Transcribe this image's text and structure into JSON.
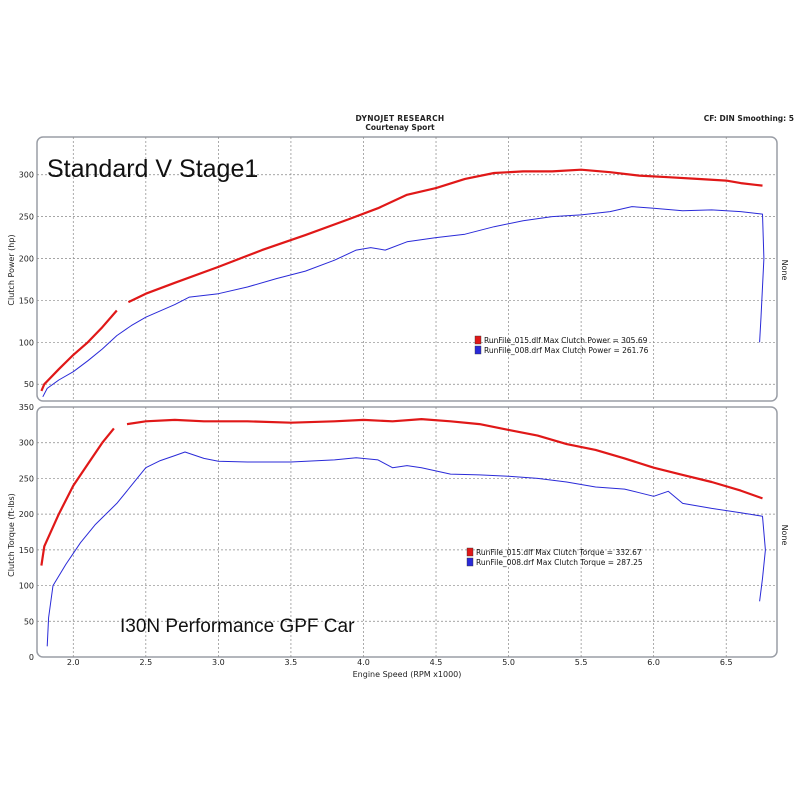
{
  "header": {
    "company": "DYNOJET RESEARCH",
    "shop": "Courtenay Sport",
    "settings": "CF: DIN  Smoothing: 5"
  },
  "colors": {
    "run015": "#e01818",
    "run008": "#2a2ad8",
    "panel": "#e6e8ec",
    "grid": "#888888"
  },
  "chart_data": [
    {
      "type": "line",
      "title": "Standard  V Stage1",
      "xlabel": "",
      "ylabel": "Clutch Power (hp)",
      "right_label": "None",
      "xlim": [
        1.75,
        6.85
      ],
      "ylim": [
        30,
        345
      ],
      "yticks": [
        50,
        100,
        150,
        200,
        250,
        300
      ],
      "grid": true,
      "legend": [
        {
          "swatch": "run015",
          "text": "RunFile_015.dlf Max Clutch Power = 305.69"
        },
        {
          "swatch": "run008",
          "text": "RunFile_008.drf Max Clutch Power = 261.76"
        }
      ],
      "series": [
        {
          "name": "RunFile_015.dlf",
          "color": "run015",
          "segments": [
            [
              [
                1.78,
                42
              ],
              [
                1.8,
                50
              ],
              [
                1.9,
                68
              ],
              [
                2.0,
                85
              ],
              [
                2.1,
                100
              ],
              [
                2.2,
                118
              ],
              [
                2.3,
                138
              ]
            ],
            [
              [
                2.38,
                148
              ],
              [
                2.5,
                158
              ],
              [
                2.7,
                171
              ],
              [
                3.0,
                190
              ],
              [
                3.3,
                210
              ],
              [
                3.6,
                228
              ],
              [
                3.9,
                247
              ],
              [
                4.1,
                260
              ],
              [
                4.3,
                276
              ],
              [
                4.5,
                284
              ],
              [
                4.7,
                295
              ],
              [
                4.9,
                302
              ],
              [
                5.1,
                304
              ],
              [
                5.3,
                304
              ],
              [
                5.5,
                306
              ],
              [
                5.7,
                303
              ],
              [
                5.9,
                299
              ],
              [
                6.1,
                297
              ],
              [
                6.3,
                295
              ],
              [
                6.5,
                293
              ],
              [
                6.6,
                290
              ],
              [
                6.7,
                288
              ],
              [
                6.75,
                287
              ]
            ]
          ]
        },
        {
          "name": "RunFile_008.drf",
          "color": "run008",
          "segments": [
            [
              [
                1.79,
                35
              ],
              [
                1.82,
                45
              ],
              [
                1.9,
                55
              ],
              [
                2.0,
                65
              ],
              [
                2.1,
                78
              ],
              [
                2.2,
                92
              ],
              [
                2.3,
                108
              ],
              [
                2.4,
                120
              ],
              [
                2.5,
                130
              ],
              [
                2.7,
                145
              ],
              [
                2.8,
                154
              ],
              [
                3.0,
                158
              ],
              [
                3.2,
                166
              ],
              [
                3.4,
                176
              ],
              [
                3.6,
                185
              ],
              [
                3.8,
                198
              ],
              [
                3.95,
                210
              ],
              [
                4.05,
                213
              ],
              [
                4.15,
                210
              ],
              [
                4.3,
                220
              ],
              [
                4.5,
                225
              ],
              [
                4.7,
                229
              ],
              [
                4.9,
                238
              ],
              [
                5.1,
                245
              ],
              [
                5.3,
                250
              ],
              [
                5.5,
                252
              ],
              [
                5.7,
                256
              ],
              [
                5.85,
                262
              ],
              [
                6.0,
                260
              ],
              [
                6.2,
                257
              ],
              [
                6.4,
                258
              ],
              [
                6.6,
                256
              ],
              [
                6.75,
                253
              ],
              [
                6.76,
                200
              ],
              [
                6.74,
                130
              ],
              [
                6.73,
                100
              ]
            ]
          ]
        }
      ]
    },
    {
      "type": "line",
      "title": "I30N Performance  GPF Car",
      "xlabel": "Engine Speed (RPM x1000)",
      "ylabel": "Clutch Torque (ft-lbs)",
      "right_label": "None",
      "xlim": [
        1.75,
        6.85
      ],
      "ylim": [
        0,
        350
      ],
      "xticks": [
        2.0,
        2.5,
        3.0,
        3.5,
        4.0,
        4.5,
        5.0,
        5.5,
        6.0,
        6.5
      ],
      "yticks": [
        0,
        50,
        100,
        150,
        200,
        250,
        300,
        350
      ],
      "grid": true,
      "legend": [
        {
          "swatch": "run015",
          "text": "RunFile_015.dlf Max Clutch Torque = 332.67"
        },
        {
          "swatch": "run008",
          "text": "RunFile_008.drf Max Clutch Torque = 287.25"
        }
      ],
      "series": [
        {
          "name": "RunFile_015.dlf",
          "color": "run015",
          "segments": [
            [
              [
                1.78,
                128
              ],
              [
                1.8,
                155
              ],
              [
                1.9,
                200
              ],
              [
                2.0,
                240
              ],
              [
                2.1,
                270
              ],
              [
                2.2,
                300
              ],
              [
                2.28,
                320
              ]
            ],
            [
              [
                2.37,
                326
              ],
              [
                2.5,
                330
              ],
              [
                2.7,
                332
              ],
              [
                2.9,
                330
              ],
              [
                3.2,
                330
              ],
              [
                3.5,
                328
              ],
              [
                3.8,
                330
              ],
              [
                4.0,
                332
              ],
              [
                4.2,
                330
              ],
              [
                4.4,
                333
              ],
              [
                4.6,
                330
              ],
              [
                4.8,
                326
              ],
              [
                5.0,
                318
              ],
              [
                5.2,
                310
              ],
              [
                5.4,
                298
              ],
              [
                5.6,
                290
              ],
              [
                5.8,
                278
              ],
              [
                6.0,
                265
              ],
              [
                6.2,
                255
              ],
              [
                6.4,
                245
              ],
              [
                6.6,
                233
              ],
              [
                6.75,
                222
              ]
            ]
          ]
        },
        {
          "name": "RunFile_008.drf",
          "color": "run008",
          "segments": [
            [
              [
                1.82,
                15
              ],
              [
                1.83,
                55
              ],
              [
                1.86,
                100
              ],
              [
                1.95,
                130
              ],
              [
                2.05,
                160
              ],
              [
                2.15,
                185
              ],
              [
                2.3,
                215
              ],
              [
                2.4,
                240
              ],
              [
                2.5,
                265
              ],
              [
                2.6,
                275
              ],
              [
                2.7,
                282
              ],
              [
                2.77,
                287
              ],
              [
                2.9,
                278
              ],
              [
                3.0,
                274
              ],
              [
                3.2,
                273
              ],
              [
                3.5,
                273
              ],
              [
                3.8,
                276
              ],
              [
                3.95,
                279
              ],
              [
                4.1,
                276
              ],
              [
                4.2,
                265
              ],
              [
                4.3,
                268
              ],
              [
                4.4,
                265
              ],
              [
                4.6,
                256
              ],
              [
                4.8,
                255
              ],
              [
                5.0,
                253
              ],
              [
                5.2,
                250
              ],
              [
                5.4,
                245
              ],
              [
                5.6,
                238
              ],
              [
                5.8,
                235
              ],
              [
                5.9,
                230
              ],
              [
                6.0,
                225
              ],
              [
                6.1,
                232
              ],
              [
                6.2,
                215
              ],
              [
                6.4,
                208
              ],
              [
                6.6,
                202
              ],
              [
                6.75,
                197
              ],
              [
                6.77,
                150
              ],
              [
                6.75,
                110
              ],
              [
                6.73,
                78
              ]
            ]
          ]
        }
      ]
    }
  ]
}
